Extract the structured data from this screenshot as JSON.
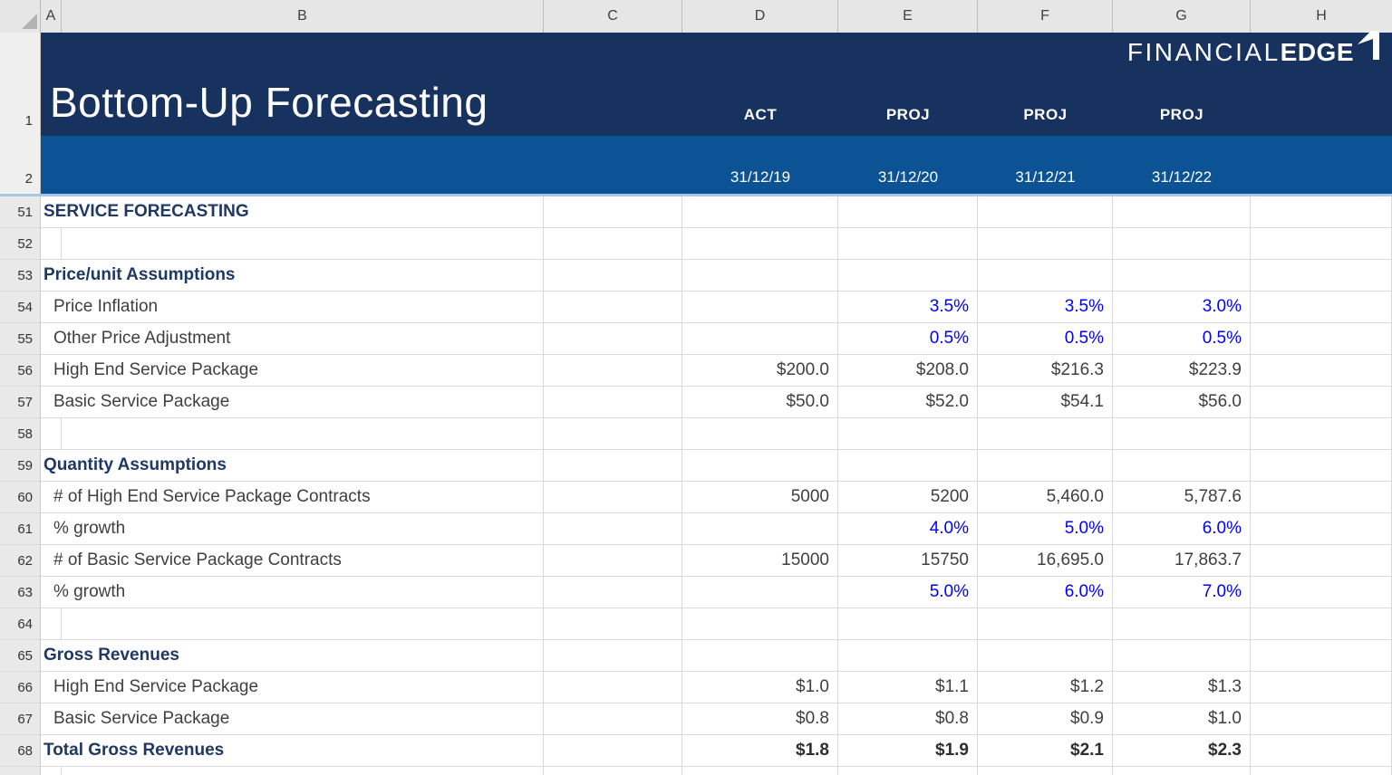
{
  "header": {
    "title": "Bottom-Up Forecasting",
    "logo": {
      "thin": "FINANCIAL",
      "bold": "EDGE"
    },
    "row_numbers": [
      "1",
      "2"
    ],
    "columns": [
      {
        "col": "D",
        "tag": "ACT",
        "date": "31/12/19"
      },
      {
        "col": "E",
        "tag": "PROJ",
        "date": "31/12/20"
      },
      {
        "col": "F",
        "tag": "PROJ",
        "date": "31/12/21"
      },
      {
        "col": "G",
        "tag": "PROJ",
        "date": "31/12/22"
      }
    ]
  },
  "grid": {
    "columns": [
      "A",
      "B",
      "C",
      "D",
      "E",
      "F",
      "G",
      "H"
    ],
    "rows": [
      {
        "num": "51",
        "label": "SERVICE FORECASTING",
        "type": "section",
        "vstyle": "normal",
        "values": [
          "",
          "",
          "",
          ""
        ]
      },
      {
        "num": "52",
        "label": "",
        "type": "empty",
        "vstyle": "normal",
        "values": [
          "",
          "",
          "",
          ""
        ]
      },
      {
        "num": "53",
        "label": "Price/unit Assumptions",
        "type": "section",
        "vstyle": "normal",
        "values": [
          "",
          "",
          "",
          ""
        ]
      },
      {
        "num": "54",
        "label": "Price Inflation",
        "type": "item",
        "vstyle": "blue",
        "values": [
          "",
          "3.5%",
          "3.5%",
          "3.0%"
        ]
      },
      {
        "num": "55",
        "label": "Other Price Adjustment",
        "type": "item",
        "vstyle": "blue",
        "values": [
          "",
          "0.5%",
          "0.5%",
          "0.5%"
        ]
      },
      {
        "num": "56",
        "label": "High End Service Package",
        "type": "item",
        "vstyle": "normal",
        "values": [
          "$200.0",
          "$208.0",
          "$216.3",
          "$223.9"
        ]
      },
      {
        "num": "57",
        "label": "Basic Service Package",
        "type": "item",
        "vstyle": "normal",
        "values": [
          "$50.0",
          "$52.0",
          "$54.1",
          "$56.0"
        ]
      },
      {
        "num": "58",
        "label": "",
        "type": "empty",
        "vstyle": "normal",
        "values": [
          "",
          "",
          "",
          ""
        ]
      },
      {
        "num": "59",
        "label": "Quantity Assumptions",
        "type": "section",
        "vstyle": "normal",
        "values": [
          "",
          "",
          "",
          ""
        ]
      },
      {
        "num": "60",
        "label": "# of High End Service Package Contracts",
        "type": "item",
        "vstyle": "normal",
        "values": [
          "5000",
          "5200",
          "5,460.0",
          "5,787.6"
        ]
      },
      {
        "num": "61",
        "label": "% growth",
        "type": "item",
        "vstyle": "blue",
        "values": [
          "",
          "4.0%",
          "5.0%",
          "6.0%"
        ]
      },
      {
        "num": "62",
        "label": "# of Basic Service Package Contracts",
        "type": "item",
        "vstyle": "normal",
        "values": [
          "15000",
          "15750",
          "16,695.0",
          "17,863.7"
        ]
      },
      {
        "num": "63",
        "label": "% growth",
        "type": "item",
        "vstyle": "blue",
        "values": [
          "",
          "5.0%",
          "6.0%",
          "7.0%"
        ]
      },
      {
        "num": "64",
        "label": "",
        "type": "empty",
        "vstyle": "normal",
        "values": [
          "",
          "",
          "",
          ""
        ]
      },
      {
        "num": "65",
        "label": "Gross Revenues",
        "type": "section",
        "vstyle": "normal",
        "values": [
          "",
          "",
          "",
          ""
        ]
      },
      {
        "num": "66",
        "label": "High End Service Package",
        "type": "item",
        "vstyle": "normal",
        "values": [
          "$1.0",
          "$1.1",
          "$1.2",
          "$1.3"
        ]
      },
      {
        "num": "67",
        "label": "Basic Service Package",
        "type": "item",
        "vstyle": "normal",
        "values": [
          "$0.8",
          "$0.8",
          "$0.9",
          "$1.0"
        ]
      },
      {
        "num": "68",
        "label": "Total Gross Revenues",
        "type": "total",
        "vstyle": "bold",
        "values": [
          "$1.8",
          "$1.9",
          "$2.1",
          "$2.3"
        ]
      }
    ]
  },
  "colors": {
    "band_top_navy": "#17325F",
    "band_bottom_blue": "#0B5394",
    "freeze_divider_blue": "#A9C6E8",
    "section_text_navy": "#1F3864",
    "input_value_blue": "#0000FF",
    "body_text": "#3F3F3F",
    "gridline": "#D9D9D9"
  }
}
